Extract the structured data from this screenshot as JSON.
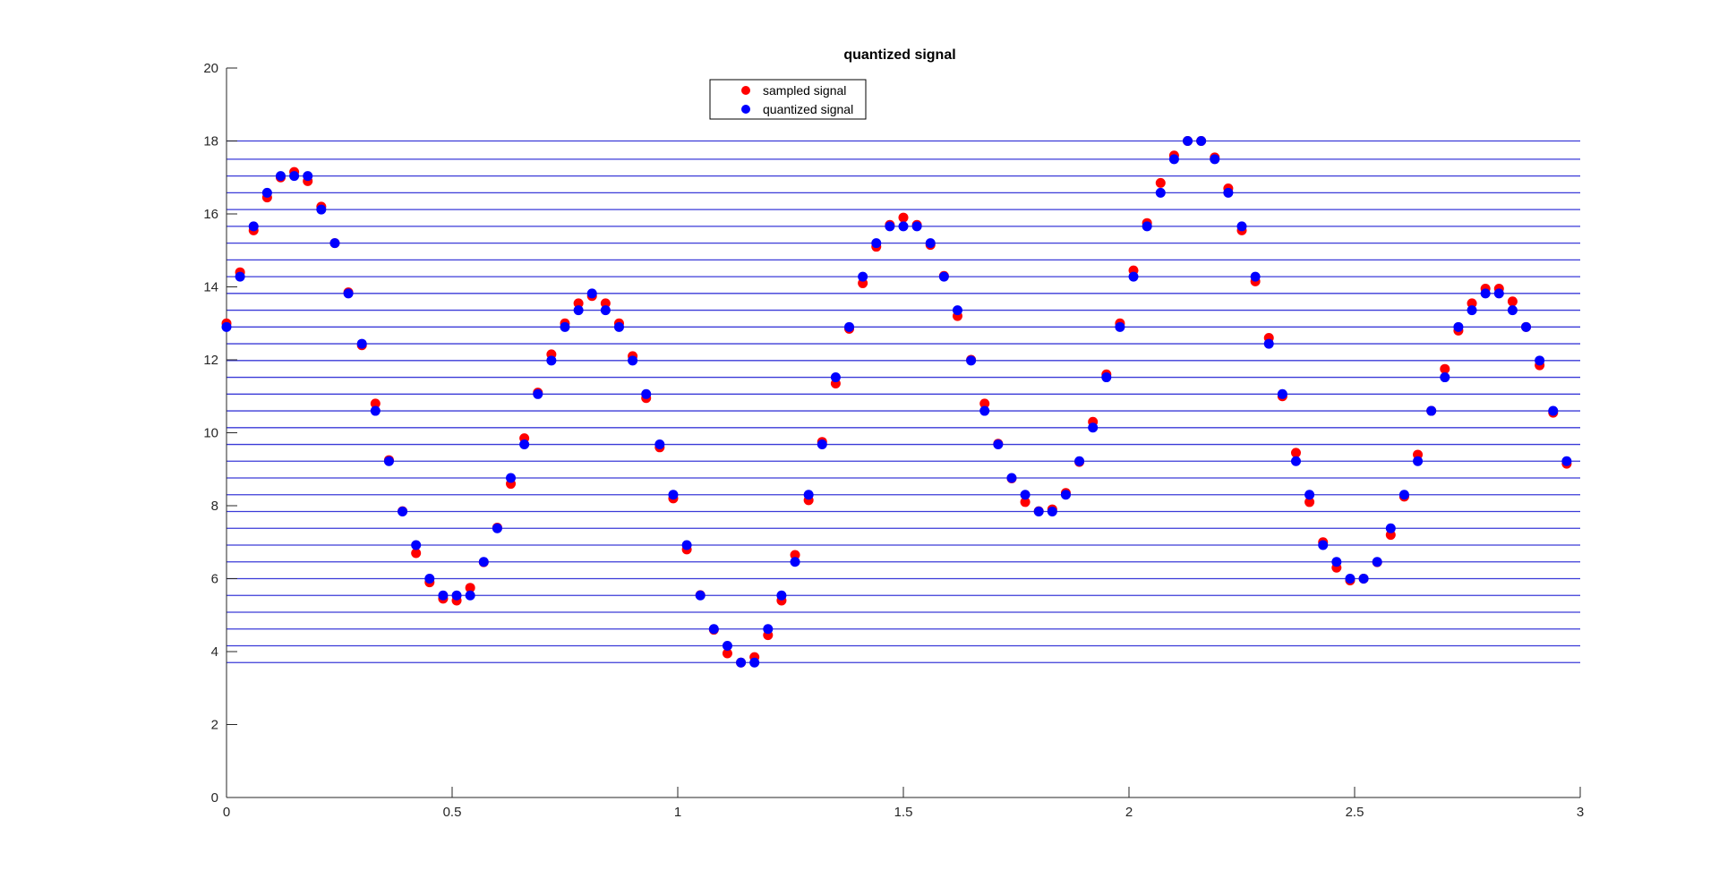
{
  "chart_data": {
    "type": "scatter",
    "title": "quantized signal",
    "xlabel": "",
    "ylabel": "",
    "xlim": [
      0,
      3
    ],
    "ylim": [
      0,
      20
    ],
    "xticks": [
      0,
      0.5,
      1,
      1.5,
      2,
      2.5,
      3
    ],
    "xtick_labels": [
      "0",
      "0.5",
      "1",
      "1.5",
      "2",
      "2.5",
      "3"
    ],
    "yticks": [
      0,
      2,
      4,
      6,
      8,
      10,
      12,
      14,
      16,
      18,
      20
    ],
    "ytick_labels": [
      "0",
      "2",
      "4",
      "6",
      "8",
      "10",
      "12",
      "14",
      "16",
      "18",
      "20"
    ],
    "grid": false,
    "legend_position": "top-center",
    "quantization_levels": [
      3.7,
      4.16,
      4.62,
      5.08,
      5.54,
      6.0,
      6.46,
      6.92,
      7.38,
      7.84,
      8.3,
      8.76,
      9.22,
      9.68,
      10.14,
      10.6,
      11.06,
      11.52,
      11.98,
      12.44,
      12.9,
      13.36,
      13.82,
      14.28,
      14.74,
      15.2,
      15.66,
      16.12,
      16.58,
      17.04,
      17.5,
      18.0
    ],
    "level_color": "#3a3ad8",
    "x": [
      0,
      0.03,
      0.06,
      0.09,
      0.12,
      0.15,
      0.18,
      0.21,
      0.24,
      0.27,
      0.3,
      0.33,
      0.36,
      0.39,
      0.42,
      0.45,
      0.48,
      0.51,
      0.54,
      0.57,
      0.6,
      0.63,
      0.66,
      0.69,
      0.72,
      0.75,
      0.78,
      0.81,
      0.84,
      0.87,
      0.9,
      0.93,
      0.96,
      0.99,
      1.02,
      1.05,
      1.08,
      1.11,
      1.14,
      1.17,
      1.2,
      1.23,
      1.26,
      1.29,
      1.32,
      1.35,
      1.38,
      1.41,
      1.44,
      1.47,
      1.5,
      1.53,
      1.56,
      1.59,
      1.62,
      1.65,
      1.68,
      1.71,
      1.74,
      1.77,
      1.8,
      1.83,
      1.86,
      1.89,
      1.92,
      1.95,
      1.98,
      2.01,
      2.04,
      2.07,
      2.1,
      2.13,
      2.16,
      2.19,
      2.22,
      2.25,
      2.28,
      2.31,
      2.34,
      2.37,
      2.4,
      2.43,
      2.46,
      2.49,
      2.52,
      2.55,
      2.58,
      2.61,
      2.64,
      2.67,
      2.7,
      2.73,
      2.76,
      2.79,
      2.82,
      2.85,
      2.88,
      2.91,
      2.94,
      2.97
    ],
    "series": [
      {
        "name": "sampled signal",
        "color": "#ff0000",
        "values": [
          13.0,
          14.4,
          15.55,
          16.45,
          17.0,
          17.15,
          16.9,
          16.2,
          15.2,
          13.85,
          12.4,
          10.8,
          9.25,
          7.85,
          6.7,
          5.9,
          5.45,
          5.4,
          5.75,
          6.45,
          7.4,
          8.6,
          9.85,
          11.1,
          12.15,
          13.0,
          13.55,
          13.75,
          13.55,
          13.0,
          12.1,
          10.95,
          9.6,
          8.2,
          6.8,
          5.55,
          4.6,
          3.95,
          3.7,
          3.85,
          4.45,
          5.4,
          6.65,
          8.15,
          9.75,
          11.35,
          12.85,
          14.1,
          15.1,
          15.7,
          15.9,
          15.7,
          15.15,
          14.3,
          13.2,
          12.0,
          10.8,
          9.7,
          8.75,
          8.1,
          7.85,
          7.9,
          8.35,
          9.2,
          10.3,
          11.6,
          13.0,
          14.45,
          15.75,
          16.85,
          17.6,
          18.0,
          18.0,
          17.55,
          16.7,
          15.55,
          14.15,
          12.6,
          11.0,
          9.45,
          8.1,
          7.0,
          6.3,
          5.95,
          6.0,
          6.45,
          7.2,
          8.25,
          9.4,
          10.6,
          11.75,
          12.8,
          13.55,
          13.95,
          13.95,
          13.6,
          12.9,
          11.85,
          10.55,
          9.15
        ]
      },
      {
        "name": "quantized signal",
        "color": "#0000ff",
        "values": [
          12.9,
          14.28,
          15.66,
          16.58,
          17.04,
          17.04,
          17.04,
          16.12,
          15.2,
          13.82,
          12.44,
          10.6,
          9.22,
          7.84,
          6.92,
          6.0,
          5.54,
          5.54,
          5.54,
          6.46,
          7.38,
          8.76,
          9.68,
          11.06,
          11.98,
          12.9,
          13.36,
          13.82,
          13.36,
          12.9,
          11.98,
          11.06,
          9.68,
          8.3,
          6.92,
          5.54,
          4.62,
          4.16,
          3.7,
          3.7,
          4.62,
          5.54,
          6.46,
          8.3,
          9.68,
          11.52,
          12.9,
          14.28,
          15.2,
          15.66,
          15.66,
          15.66,
          15.2,
          14.28,
          13.36,
          11.98,
          10.6,
          9.68,
          8.76,
          8.3,
          7.84,
          7.84,
          8.3,
          9.22,
          10.14,
          11.52,
          12.9,
          14.28,
          15.66,
          16.58,
          17.5,
          18.0,
          18.0,
          17.5,
          16.58,
          15.66,
          14.28,
          12.44,
          11.06,
          9.22,
          8.3,
          6.92,
          6.46,
          6.0,
          6.0,
          6.46,
          7.38,
          8.3,
          9.22,
          10.6,
          11.52,
          12.9,
          13.36,
          13.82,
          13.82,
          13.36,
          12.9,
          11.98,
          10.6,
          9.22
        ]
      }
    ]
  }
}
